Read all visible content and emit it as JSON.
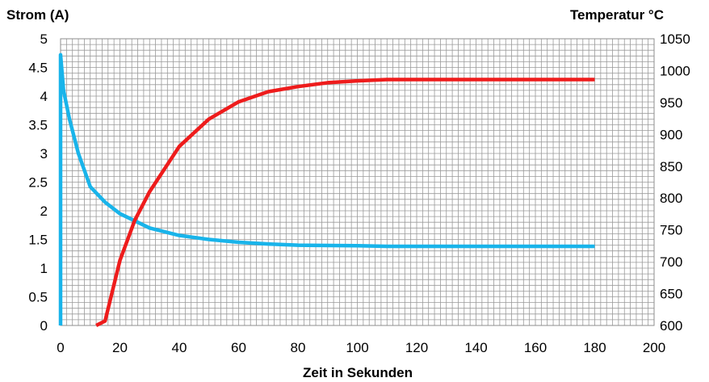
{
  "chart_data": {
    "type": "line",
    "xlabel": "Zeit in Sekunden",
    "ylabel_left": "Strom (A)",
    "ylabel_right": "Temperatur °C",
    "xlim": [
      0,
      200
    ],
    "ylim_left": [
      0,
      5
    ],
    "ylim_right": [
      600,
      1050
    ],
    "x_ticks": [
      "0",
      "20",
      "40",
      "60",
      "80",
      "100",
      "120",
      "140",
      "160",
      "180",
      "200"
    ],
    "y_left_ticks": [
      "0",
      "0.5",
      "1",
      "1.5",
      "2",
      "2.5",
      "3",
      "3.5",
      "4",
      "4.5",
      "5"
    ],
    "y_right_ticks": [
      "600",
      "650",
      "700",
      "750",
      "800",
      "850",
      "900",
      "950",
      "1000",
      "1050"
    ],
    "grid": true,
    "minor_grid_x_step": 2,
    "minor_grid_y_left_step": 0.1,
    "series": [
      {
        "axis": "left",
        "color": "#19b4ea",
        "points": [
          [
            0,
            0
          ],
          [
            0,
            4.72
          ],
          [
            1,
            4.1
          ],
          [
            3,
            3.6
          ],
          [
            6,
            3.0
          ],
          [
            10,
            2.42
          ],
          [
            15,
            2.15
          ],
          [
            20,
            1.95
          ],
          [
            30,
            1.7
          ],
          [
            40,
            1.57
          ],
          [
            50,
            1.5
          ],
          [
            60,
            1.45
          ],
          [
            70,
            1.42
          ],
          [
            80,
            1.4
          ],
          [
            100,
            1.39
          ],
          [
            110,
            1.38
          ],
          [
            180,
            1.38
          ]
        ]
      },
      {
        "axis": "right",
        "color": "#ee1c1c",
        "points": [
          [
            12,
            600
          ],
          [
            15,
            607
          ],
          [
            20,
            702
          ],
          [
            25,
            765
          ],
          [
            30,
            810
          ],
          [
            40,
            881
          ],
          [
            50,
            924
          ],
          [
            60,
            951
          ],
          [
            70,
            967
          ],
          [
            80,
            975
          ],
          [
            90,
            981
          ],
          [
            100,
            984
          ],
          [
            110,
            986
          ],
          [
            180,
            986
          ]
        ]
      }
    ]
  }
}
